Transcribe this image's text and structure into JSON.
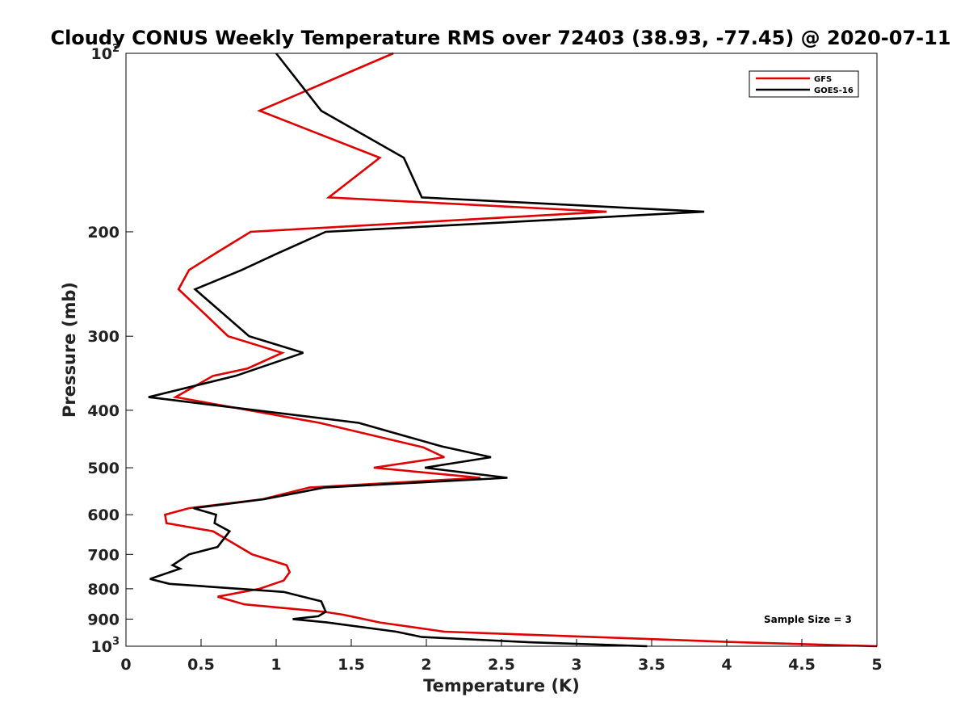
{
  "chart_data": {
    "type": "line",
    "title": "Cloudy CONUS Weekly Temperature RMS over 72403 (38.93, -77.45) @ 2020-07-11",
    "xlabel": "Temperature (K)",
    "ylabel": "Pressure (mb)",
    "xlim": [
      0,
      5
    ],
    "ylim": [
      100,
      1000
    ],
    "y_scale": "log",
    "y_reversed": true,
    "grid": false,
    "legend_position": "top-right",
    "x_ticks": [
      0,
      0.5,
      1,
      1.5,
      2,
      2.5,
      3,
      3.5,
      4,
      4.5,
      5
    ],
    "x_tick_labels": [
      "0",
      "0.5",
      "1",
      "1.5",
      "2",
      "2.5",
      "3",
      "3.5",
      "4",
      "4.5",
      "5"
    ],
    "y_ticks": [
      {
        "value": 100,
        "label": "10",
        "exponent": "2"
      },
      {
        "value": 200,
        "label": "200",
        "exponent": ""
      },
      {
        "value": 300,
        "label": "300",
        "exponent": ""
      },
      {
        "value": 400,
        "label": "400",
        "exponent": ""
      },
      {
        "value": 500,
        "label": "500",
        "exponent": ""
      },
      {
        "value": 600,
        "label": "600",
        "exponent": ""
      },
      {
        "value": 700,
        "label": "700",
        "exponent": ""
      },
      {
        "value": 800,
        "label": "800",
        "exponent": ""
      },
      {
        "value": 900,
        "label": "900",
        "exponent": ""
      },
      {
        "value": 1000,
        "label": "10",
        "exponent": "3"
      }
    ],
    "annotation": "Sample Size = 3",
    "series": [
      {
        "name": "GFS",
        "color": "#e00000",
        "x": [
          1.78,
          0.89,
          1.69,
          1.35,
          3.2,
          0.83,
          0.59,
          0.42,
          0.35,
          0.53,
          0.68,
          1.04,
          0.81,
          0.58,
          0.33,
          1.29,
          1.98,
          2.12,
          1.65,
          2.36,
          1.22,
          0.91,
          0.42,
          0.26,
          0.27,
          0.58,
          0.84,
          1.07,
          1.09,
          1.05,
          0.89,
          0.61,
          0.79,
          1.32,
          1.45,
          1.69,
          2.12,
          3.11,
          4.1,
          5.0
        ],
        "y": [
          100,
          125,
          150,
          175,
          185,
          200,
          218,
          232,
          250,
          276,
          300,
          320,
          340,
          350,
          380,
          420,
          462,
          480,
          500,
          520,
          540,
          565,
          585,
          600,
          620,
          640,
          700,
          730,
          750,
          775,
          800,
          825,
          850,
          875,
          885,
          912,
          945,
          965,
          985,
          1000
        ]
      },
      {
        "name": "GOES-16",
        "color": "#000000",
        "x": [
          1.0,
          1.3,
          1.85,
          1.97,
          3.85,
          1.33,
          1.0,
          0.77,
          0.46,
          0.82,
          1.18,
          0.73,
          0.15,
          1.55,
          2.1,
          2.43,
          1.99,
          2.54,
          1.32,
          0.92,
          0.45,
          0.6,
          0.59,
          0.69,
          0.61,
          0.42,
          0.31,
          0.36,
          0.16,
          0.29,
          1.05,
          1.3,
          1.33,
          1.28,
          1.11,
          1.34,
          1.8,
          1.97,
          2.7,
          3.47
        ],
        "y": [
          100,
          125,
          150,
          175,
          185,
          200,
          218,
          232,
          250,
          300,
          320,
          350,
          380,
          420,
          460,
          480,
          500,
          520,
          540,
          565,
          585,
          600,
          620,
          640,
          680,
          700,
          730,
          740,
          770,
          785,
          810,
          840,
          875,
          890,
          900,
          912,
          945,
          965,
          985,
          1000
        ]
      }
    ]
  }
}
